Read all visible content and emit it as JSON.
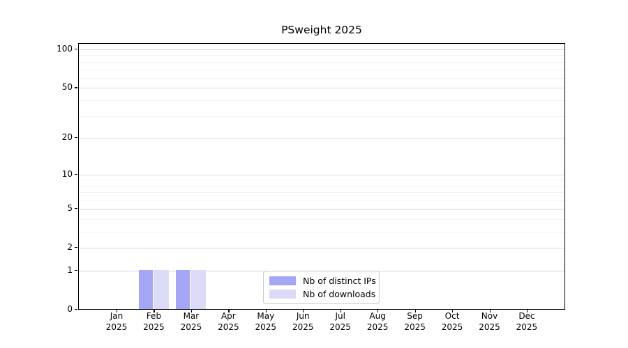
{
  "chart_data": {
    "type": "bar",
    "title": "PSweight 2025",
    "categories": [
      "Jan",
      "Feb",
      "Mar",
      "Apr",
      "May",
      "Jun",
      "Jul",
      "Aug",
      "Sep",
      "Oct",
      "Nov",
      "Dec"
    ],
    "year_label": "2025",
    "series": [
      {
        "name": "Nb of distinct IPs",
        "color": "#a6a6f7",
        "values": [
          0,
          1,
          1,
          0,
          0,
          0,
          0,
          0,
          0,
          0,
          0,
          0
        ]
      },
      {
        "name": "Nb of downloads",
        "color": "#dbdbf8",
        "values": [
          0,
          1,
          1,
          0,
          0,
          0,
          0,
          0,
          0,
          0,
          0,
          0
        ]
      }
    ],
    "y_ticks": [
      0,
      1,
      2,
      5,
      10,
      20,
      50,
      100
    ],
    "y_minor_ticks": [
      3,
      4,
      6,
      7,
      8,
      9,
      30,
      40,
      60,
      70,
      80,
      90
    ],
    "y_scale": "log1p",
    "ylim": [
      0,
      110
    ],
    "xlabel": "",
    "ylabel": "",
    "grid": true,
    "legend_position": "lower center",
    "colors": {
      "axis": "#000000",
      "grid_major": "#d9d9d9",
      "grid_minor": "#f1f1f1",
      "legend_border": "#cccccc",
      "background": "#ffffff"
    }
  }
}
